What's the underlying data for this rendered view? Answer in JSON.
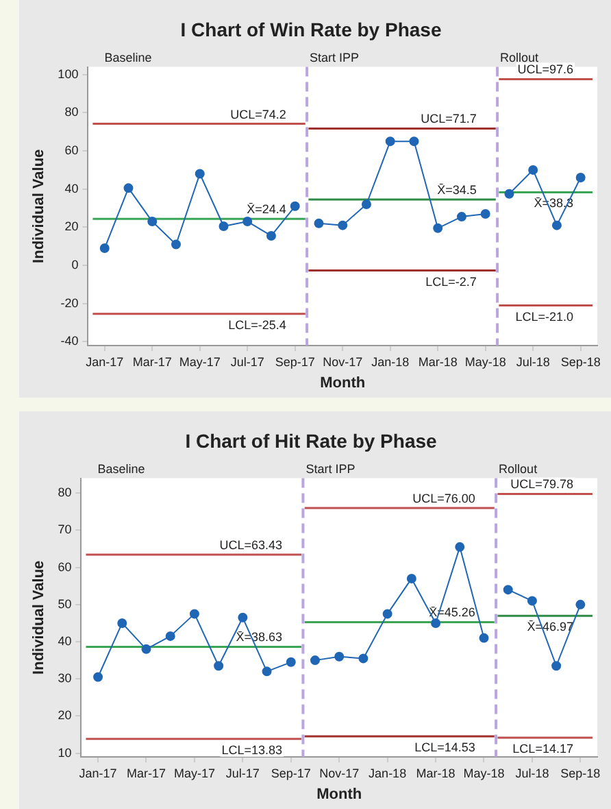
{
  "chart_data": [
    {
      "type": "line",
      "title": "I Chart of Win Rate by Phase",
      "xlabel": "Month",
      "ylabel": "Individual Value",
      "xlim": [
        "2016-12-10",
        "2018-09-22"
      ],
      "xticks": [
        {
          "value": "2017-01",
          "label": "Jan-17"
        },
        {
          "value": "2017-03",
          "label": "Mar-17"
        },
        {
          "value": "2017-05",
          "label": "May-17"
        },
        {
          "value": "2017-07",
          "label": "Jul-17"
        },
        {
          "value": "2017-09",
          "label": "Sep-17"
        },
        {
          "value": "2017-11",
          "label": "Nov-17"
        },
        {
          "value": "2018-01",
          "label": "Jan-18"
        },
        {
          "value": "2018-03",
          "label": "Mar-18"
        },
        {
          "value": "2018-05",
          "label": "May-18"
        },
        {
          "value": "2018-07",
          "label": "Jul-18"
        },
        {
          "value": "2018-09",
          "label": "Sep-18"
        }
      ],
      "ylim": [
        -42,
        104
      ],
      "yticks": [
        -40,
        -20,
        0,
        20,
        40,
        60,
        80,
        100
      ],
      "grid": false,
      "legend": false,
      "annotations": [
        "Baseline"
      ],
      "ref_lines": [
        {
          "axis": "x",
          "value": "2017-09-16",
          "label": "Start IPP",
          "color": "#b9a6e0",
          "line_style": "dashed"
        },
        {
          "axis": "x",
          "value": "2018-05-16",
          "label": "Rollout",
          "color": "#b9a6e0",
          "line_style": "dashed"
        }
      ],
      "series": [
        {
          "color": "#1f66b5",
          "marker": "circle",
          "x": [
            "2017-01",
            "2017-02",
            "2017-03",
            "2017-04",
            "2017-05",
            "2017-06",
            "2017-07",
            "2017-08",
            "2017-09"
          ],
          "values": [
            9,
            40.5,
            23,
            11,
            48,
            20.5,
            23,
            15.5,
            31
          ]
        },
        {
          "color": "#1f66b5",
          "marker": "circle",
          "x": [
            "2017-10",
            "2017-11",
            "2017-12",
            "2018-01",
            "2018-02",
            "2018-03",
            "2018-04",
            "2018-05"
          ],
          "values": [
            22,
            21,
            32,
            65,
            65,
            19.5,
            25.5,
            27
          ]
        },
        {
          "color": "#1f66b5",
          "marker": "circle",
          "x": [
            "2018-06",
            "2018-07",
            "2018-08",
            "2018-09"
          ],
          "values": [
            37.5,
            50,
            21,
            46
          ]
        },
        {
          "name": "UCL=74.2",
          "color": "#c0504d",
          "marker": "none",
          "x": [
            "2016-12-16",
            "2017-09-14"
          ],
          "values": [
            74.2,
            74.2
          ]
        },
        {
          "name": "X̄=24.4",
          "color": "#3aa655",
          "marker": "none",
          "x": [
            "2016-12-16",
            "2017-09-14"
          ],
          "values": [
            24.4,
            24.4
          ]
        },
        {
          "name": "LCL=-25.4",
          "color": "#c0504d",
          "marker": "none",
          "x": [
            "2016-12-16",
            "2017-09-14"
          ],
          "values": [
            -25.4,
            -25.4
          ]
        },
        {
          "name": "UCL=71.7",
          "color": "#a0302e",
          "marker": "none",
          "x": [
            "2017-09-18",
            "2018-05-14"
          ],
          "values": [
            71.7,
            71.7
          ]
        },
        {
          "name": "X̄=34.5",
          "color": "#2e8b45",
          "marker": "none",
          "x": [
            "2017-09-18",
            "2018-05-14"
          ],
          "values": [
            34.5,
            34.5
          ]
        },
        {
          "name": "LCL=-2.7",
          "color": "#a0302e",
          "marker": "none",
          "x": [
            "2017-09-18",
            "2018-05-14"
          ],
          "values": [
            -2.7,
            -2.7
          ]
        },
        {
          "name": "UCL=97.6",
          "color": "#c0504d",
          "marker": "none",
          "x": [
            "2018-05-18",
            "2018-09-16"
          ],
          "values": [
            97.6,
            97.6
          ]
        },
        {
          "name": "X̄=38.3",
          "color": "#3aa655",
          "marker": "none",
          "x": [
            "2018-05-18",
            "2018-09-16"
          ],
          "values": [
            38.3,
            38.3
          ]
        },
        {
          "name": "LCL=-21.0",
          "color": "#c0504d",
          "marker": "none",
          "x": [
            "2018-05-18",
            "2018-09-16"
          ],
          "values": [
            -21.0,
            -21.0
          ]
        }
      ]
    },
    {
      "type": "line",
      "title": "I Chart of Hit Rate by Phase",
      "xlabel": "Month",
      "ylabel": "Individual Value",
      "xlim": [
        "2016-12-10",
        "2018-09-22"
      ],
      "xticks": [
        {
          "value": "2017-01",
          "label": "Jan-17"
        },
        {
          "value": "2017-03",
          "label": "Mar-17"
        },
        {
          "value": "2017-05",
          "label": "May-17"
        },
        {
          "value": "2017-07",
          "label": "Jul-17"
        },
        {
          "value": "2017-09",
          "label": "Sep-17"
        },
        {
          "value": "2017-11",
          "label": "Nov-17"
        },
        {
          "value": "2018-01",
          "label": "Jan-18"
        },
        {
          "value": "2018-03",
          "label": "Mar-18"
        },
        {
          "value": "2018-05",
          "label": "May-18"
        },
        {
          "value": "2018-07",
          "label": "Jul-18"
        },
        {
          "value": "2018-09",
          "label": "Sep-18"
        }
      ],
      "ylim": [
        9,
        84
      ],
      "yticks": [
        10,
        20,
        30,
        40,
        50,
        60,
        70,
        80
      ],
      "grid": false,
      "legend": false,
      "annotations": [
        "Baseline"
      ],
      "ref_lines": [
        {
          "axis": "x",
          "value": "2017-09-16",
          "label": "Start IPP",
          "color": "#b9a6e0",
          "line_style": "dashed"
        },
        {
          "axis": "x",
          "value": "2018-05-16",
          "label": "Rollout",
          "color": "#b9a6e0",
          "line_style": "dashed"
        }
      ],
      "series": [
        {
          "color": "#1f66b5",
          "marker": "circle",
          "x": [
            "2017-01",
            "2017-02",
            "2017-03",
            "2017-04",
            "2017-05",
            "2017-06",
            "2017-07",
            "2017-08",
            "2017-09"
          ],
          "values": [
            30.5,
            45,
            38,
            41.5,
            47.5,
            33.5,
            46.5,
            32,
            34.5
          ]
        },
        {
          "color": "#1f66b5",
          "marker": "circle",
          "x": [
            "2017-10",
            "2017-11",
            "2017-12",
            "2018-01",
            "2018-02",
            "2018-03",
            "2018-04",
            "2018-05"
          ],
          "values": [
            35,
            36,
            35.5,
            47.5,
            57,
            45,
            65.5,
            41
          ]
        },
        {
          "color": "#1f66b5",
          "marker": "circle",
          "x": [
            "2018-06",
            "2018-07",
            "2018-08",
            "2018-09"
          ],
          "values": [
            54,
            51,
            33.5,
            50
          ]
        },
        {
          "name": "UCL=63.43",
          "color": "#c0504d",
          "marker": "none",
          "x": [
            "2016-12-16",
            "2017-09-14"
          ],
          "values": [
            63.43,
            63.43
          ]
        },
        {
          "name": "X̄=38.63",
          "color": "#3aa655",
          "marker": "none",
          "x": [
            "2016-12-16",
            "2017-09-14"
          ],
          "values": [
            38.63,
            38.63
          ]
        },
        {
          "name": "LCL=13.83",
          "color": "#c0504d",
          "marker": "none",
          "x": [
            "2016-12-16",
            "2017-09-14"
          ],
          "values": [
            13.83,
            13.83
          ]
        },
        {
          "name": "UCL=76.00",
          "color": "#c0504d",
          "marker": "none",
          "x": [
            "2017-09-18",
            "2018-05-14"
          ],
          "values": [
            76.0,
            76.0
          ]
        },
        {
          "name": "X̄=45.26",
          "color": "#3aa655",
          "marker": "none",
          "x": [
            "2017-09-18",
            "2018-05-14"
          ],
          "values": [
            45.26,
            45.26
          ]
        },
        {
          "name": "LCL=14.53",
          "color": "#a0302e",
          "marker": "none",
          "x": [
            "2017-09-18",
            "2018-05-14"
          ],
          "values": [
            14.53,
            14.53
          ]
        },
        {
          "name": "UCL=79.78",
          "color": "#c0504d",
          "marker": "none",
          "x": [
            "2018-05-18",
            "2018-09-16"
          ],
          "values": [
            79.78,
            79.78
          ]
        },
        {
          "name": "X̄=46.97",
          "color": "#2e8b45",
          "marker": "none",
          "x": [
            "2018-05-18",
            "2018-09-16"
          ],
          "values": [
            46.97,
            46.97
          ]
        },
        {
          "name": "LCL=14.17",
          "color": "#c0504d",
          "marker": "none",
          "x": [
            "2018-05-18",
            "2018-09-16"
          ],
          "values": [
            14.17,
            14.17
          ]
        }
      ]
    }
  ]
}
